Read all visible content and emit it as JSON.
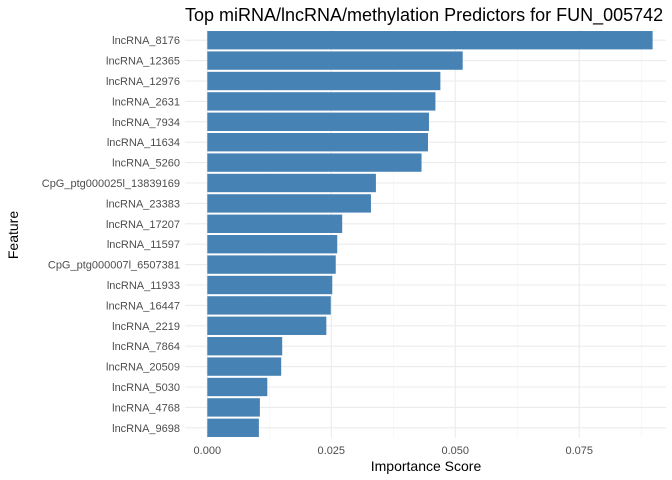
{
  "chart_data": {
    "type": "bar",
    "orientation": "horizontal",
    "title": "Top miRNA/lncRNA/methylation Predictors for FUN_005742",
    "xlabel": "Importance Score",
    "ylabel": "Feature",
    "xlim": [
      -0.0045,
      0.0925
    ],
    "x_ticks": [
      0.0,
      0.025,
      0.05,
      0.075
    ],
    "x_tick_labels": [
      "0.000",
      "0.025",
      "0.050",
      "0.075"
    ],
    "grid": true,
    "bar_color": "#4682b4",
    "categories": [
      "lncRNA_8176",
      "lncRNA_12365",
      "lncRNA_12976",
      "lncRNA_2631",
      "lncRNA_7934",
      "lncRNA_11634",
      "lncRNA_5260",
      "CpG_ptg000025l_13839169",
      "lncRNA_23383",
      "lncRNA_17207",
      "lncRNA_11597",
      "CpG_ptg000007l_6507381",
      "lncRNA_11933",
      "lncRNA_16447",
      "lncRNA_2219",
      "lncRNA_7864",
      "lncRNA_20509",
      "lncRNA_5030",
      "lncRNA_4768",
      "lncRNA_9698"
    ],
    "values": [
      0.0898,
      0.0515,
      0.047,
      0.046,
      0.0447,
      0.0445,
      0.0432,
      0.034,
      0.033,
      0.0272,
      0.0262,
      0.0259,
      0.0252,
      0.0249,
      0.024,
      0.0151,
      0.0149,
      0.0121,
      0.0106,
      0.0104
    ]
  }
}
